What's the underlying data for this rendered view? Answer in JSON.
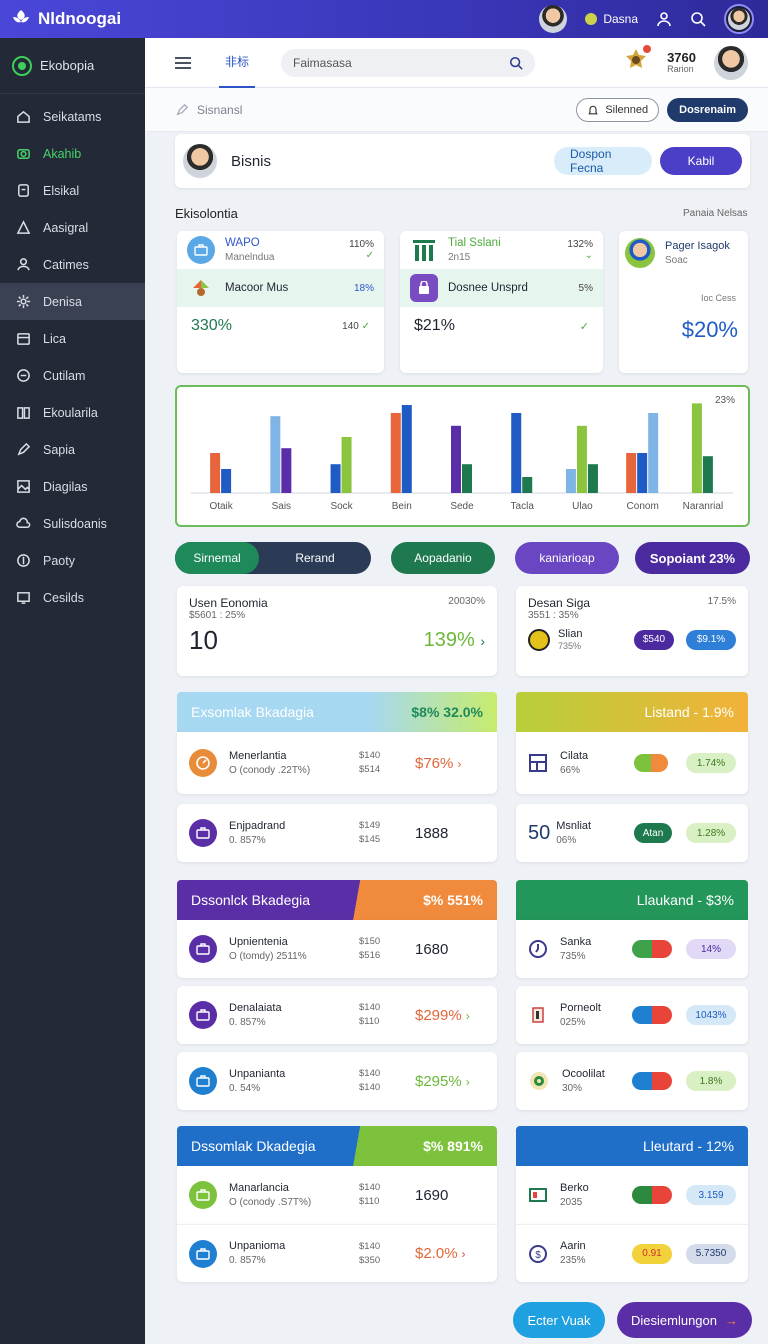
{
  "app": {
    "name": "Nldnoogai"
  },
  "topbar": {
    "user_label": "Dasna"
  },
  "sidebar": {
    "brand": "Ekobopia",
    "items": [
      {
        "label": "Seikatams",
        "icon": "home-icon"
      },
      {
        "label": "Akahib",
        "icon": "camera-icon"
      },
      {
        "label": "Elsikal",
        "icon": "device-icon"
      },
      {
        "label": "Aasigral",
        "icon": "triangle-icon"
      },
      {
        "label": "Catimes",
        "icon": "user-icon"
      },
      {
        "label": "Denisa",
        "icon": "gear-icon"
      },
      {
        "label": "Lica",
        "icon": "calendar-icon"
      },
      {
        "label": "Cutilam",
        "icon": "chat-icon"
      },
      {
        "label": "Ekoularila",
        "icon": "book-icon"
      },
      {
        "label": "Sapia",
        "icon": "pen-icon"
      },
      {
        "label": "Diagilas",
        "icon": "image-icon"
      },
      {
        "label": "Sulisdoanis",
        "icon": "cloud-icon"
      },
      {
        "label": "Paoty",
        "icon": "coin-icon"
      },
      {
        "label": "Cesilds",
        "icon": "monitor-icon"
      }
    ]
  },
  "header": {
    "tab": "非标",
    "search_placeholder": "Faimasasa",
    "stat_value": "3760",
    "stat_sub": "Rarion"
  },
  "subbar": {
    "title": "Sisnansl",
    "outline_btn": "Silenned",
    "primary_btn": "Dosrenaim"
  },
  "profile": {
    "name": "Bisnis",
    "btn1": "Dospon Fecna",
    "btn2": "Kabil"
  },
  "section": {
    "title": "Ekisolontia",
    "right": "Panaia Nelsas"
  },
  "kpis": [
    {
      "title": "WAPO",
      "sub": "Manelndua",
      "pct": "110%",
      "row2": "Macoor Mus",
      "row2_pct": "18%",
      "big": "330%",
      "small": "140"
    },
    {
      "title": "Tial Sslani",
      "sub": "2n15",
      "pct": "132%",
      "row2": "Dosnee Unsprd",
      "row2_pct": "5%",
      "big": "$21%",
      "small": ""
    },
    {
      "title": "Pager Isagok",
      "sub": "Soac",
      "pct": "",
      "row2": "Ioc Cess",
      "row2_pct": "",
      "big": "$20%",
      "small": ""
    }
  ],
  "chart_data": {
    "type": "bar",
    "categories": [
      "Otaik",
      "Sais",
      "Sock",
      "Bein",
      "Sede",
      "Tacla",
      "Ulao",
      "Conom",
      "Naranrial"
    ],
    "corner_label": "23%",
    "series": [
      {
        "color": "#e8643a",
        "values": [
          25,
          0,
          0,
          50,
          0,
          0,
          0,
          25,
          0
        ]
      },
      {
        "color": "#1f5bc4",
        "values": [
          15,
          0,
          18,
          55,
          0,
          50,
          0,
          25,
          0
        ]
      },
      {
        "color": "#7fb5e6",
        "values": [
          0,
          48,
          0,
          0,
          0,
          0,
          15,
          50,
          0
        ]
      },
      {
        "color": "#5a2ea6",
        "values": [
          0,
          28,
          0,
          0,
          42,
          0,
          0,
          0,
          0
        ]
      },
      {
        "color": "#8bc540",
        "values": [
          0,
          0,
          35,
          0,
          0,
          0,
          42,
          0,
          56
        ]
      },
      {
        "color": "#1e7a4e",
        "values": [
          0,
          0,
          0,
          0,
          18,
          10,
          18,
          0,
          23
        ]
      }
    ]
  },
  "toggles": {
    "seg_left": "Sirnemal",
    "seg_right": "Rerand",
    "t2": "Aopadanio",
    "t3": "kaniarioap",
    "t4": "Sopoiant 23%"
  },
  "summary_left": {
    "title": "Usen Eonomia",
    "sub": "$5601 : 25%",
    "right_top": "20030%",
    "big": "10",
    "pct": "139%"
  },
  "summary_right": {
    "title": "Desan Siga",
    "sub": "3551 : 35%",
    "right_top": "17.5%",
    "item": "Slian",
    "item_sub": "735%",
    "chip1": "$540",
    "chip2": "$9.1%"
  },
  "groups": [
    {
      "band": "Exsomlak Bkadagia",
      "band_val": "$8% 32.0%",
      "rows": [
        {
          "icon": "gauge-icon",
          "title": "Menerlantia",
          "sub": "O (conody .22T%)",
          "m1": "$140",
          "m2": "$514",
          "val": "$76%",
          "arrow": "›"
        },
        {
          "icon": "briefcase-icon",
          "title": "Enjpadrand",
          "sub": "0. 857%",
          "m1": "$149",
          "m2": "$145",
          "val": "1888",
          "arrow": ""
        }
      ]
    },
    {
      "band": "Dssonlck Bkadegia",
      "band_val": "$% 551%",
      "rows": [
        {
          "icon": "briefcase-icon",
          "title": "Upnientenia",
          "sub": "O (tomdy) 2511%",
          "m1": "$150",
          "m2": "$516",
          "val": "1680",
          "arrow": ""
        },
        {
          "icon": "briefcase-icon",
          "title": "Denalaiata",
          "sub": "0. 857%",
          "m1": "$140",
          "m2": "$110",
          "val": "$299%",
          "arrow": "›"
        },
        {
          "icon": "briefcase-icon",
          "title": "Unpanianta",
          "sub": "0. 54%",
          "m1": "$140",
          "m2": "$140",
          "val": "$295%",
          "arrow": "›"
        }
      ]
    },
    {
      "band": "Dssomlak Dkadegia",
      "band_val": "$% 891%",
      "rows": [
        {
          "icon": "briefcase-icon",
          "title": "Manarlancia",
          "sub": "O (conody .S7T%)",
          "m1": "$140",
          "m2": "$110",
          "val": "1690",
          "arrow": ""
        },
        {
          "icon": "briefcase-icon",
          "title": "Unpanioma",
          "sub": "0. 857%",
          "m1": "$140",
          "m2": "$350",
          "val": "$2.0%",
          "arrow": "›"
        }
      ]
    }
  ],
  "right_groups": [
    {
      "band": "Listand - 1.9%",
      "rows": [
        {
          "icon": "grid-icon",
          "title": "Cilata",
          "sub": "66%",
          "chip": "1.74%"
        },
        {
          "icon": "",
          "num": "50",
          "title": "Msnliat",
          "sub": "06%",
          "pill": "Atan",
          "chip": "1.28%"
        }
      ]
    },
    {
      "band": "Llaukand - $3%",
      "rows": [
        {
          "icon": "clock-icon",
          "title": "Sanka",
          "sub": "735%",
          "chip": "14%"
        },
        {
          "icon": "flag-icon",
          "title": "Porneolt",
          "sub": "025%",
          "chip": "1043%"
        },
        {
          "icon": "target-icon",
          "title": "Ocoolilat",
          "sub": "30%",
          "chip": "1.8%"
        }
      ]
    },
    {
      "band": "Lleutard - 12%",
      "rows": [
        {
          "icon": "card-icon",
          "title": "Berko",
          "sub": "2035",
          "chip": "3.159"
        },
        {
          "icon": "dollar-icon",
          "title": "Aarin",
          "sub": "235%",
          "mini": "0.91",
          "chip": "5.7350"
        }
      ]
    }
  ],
  "footer": {
    "btn1": "Ecter Vuak",
    "btn2": "Diesiemlungon"
  },
  "colors": {
    "primary": "#4a47d8",
    "sidebar": "#232936",
    "green": "#3ccf5a"
  }
}
